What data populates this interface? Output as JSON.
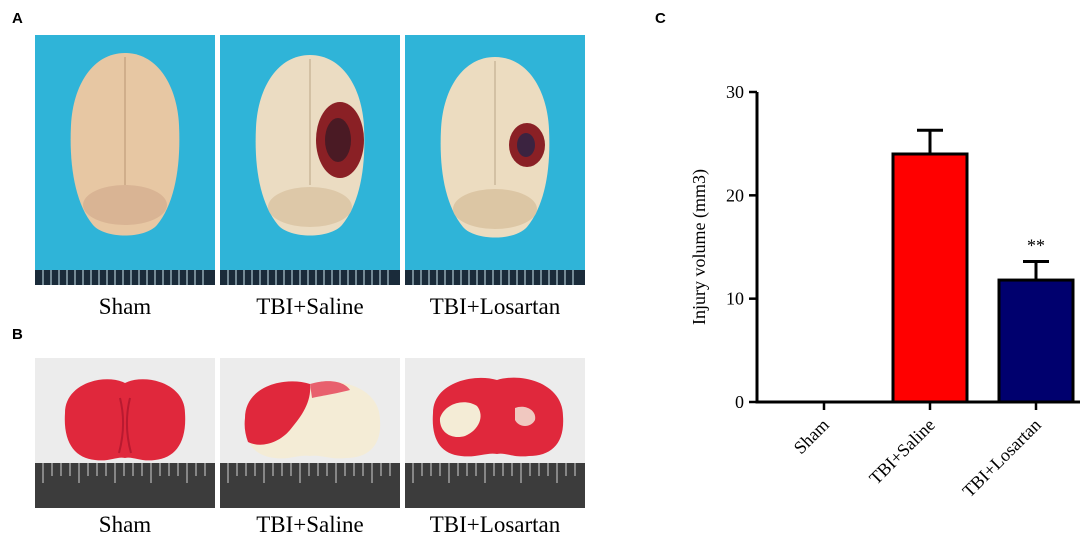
{
  "panel_a": {
    "letter": "A",
    "captions": [
      "Sham",
      "TBI+Saline",
      "TBI+Losartan"
    ]
  },
  "panel_b": {
    "letter": "B",
    "captions": [
      "Sham",
      "TBI+Saline",
      "TBI+Losartan"
    ]
  },
  "panel_c": {
    "letter": "C",
    "significance_label": "**"
  },
  "colors": {
    "photo_background_blue": "#2fb4d8",
    "brain_tissue": "#e7d2b0",
    "lesion": "#8a2025",
    "bar_saline": "#ff0000",
    "bar_losartan": "#00006e",
    "ttc_red": "#e0283c",
    "ttc_white": "#f4ecd6"
  },
  "chart_data": {
    "type": "bar",
    "categories": [
      "Sham",
      "TBI+Saline",
      "TBI+Losartan"
    ],
    "values": [
      0,
      24,
      11.8
    ],
    "error": [
      0,
      2.3,
      1.8
    ],
    "ylabel": "Injury volume (mm3)",
    "ylim": [
      0,
      30
    ],
    "yticks": [
      0,
      10,
      20,
      30
    ],
    "grid": false,
    "bar_colors": [
      "#ffffff",
      "#ff0000",
      "#00006e"
    ]
  }
}
